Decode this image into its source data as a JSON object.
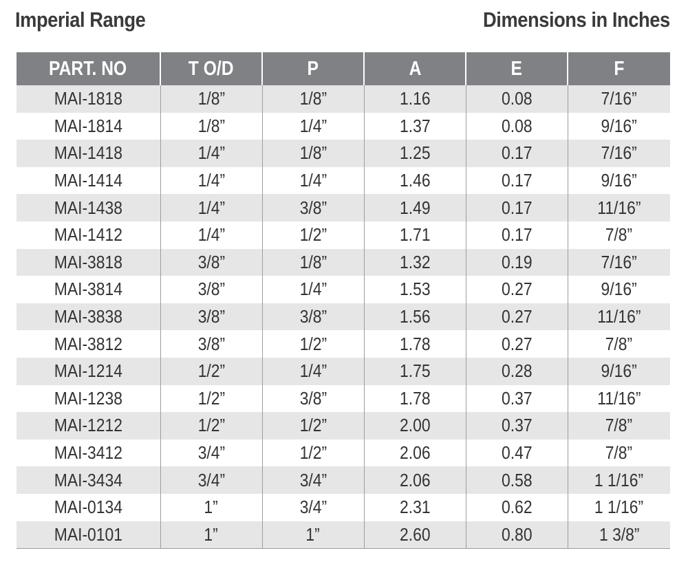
{
  "header": {
    "title": "Imperial Range",
    "units_note": "Dimensions in Inches"
  },
  "table": {
    "columns": [
      "PART. NO",
      "T O/D",
      "P",
      "A",
      "E",
      "F"
    ],
    "rows": [
      [
        "MAI-1818",
        "1/8”",
        "1/8”",
        "1.16",
        "0.08",
        "7/16”"
      ],
      [
        "MAI-1814",
        "1/8”",
        "1/4”",
        "1.37",
        "0.08",
        "9/16”"
      ],
      [
        "MAI-1418",
        "1/4”",
        "1/8”",
        "1.25",
        "0.17",
        "7/16”"
      ],
      [
        "MAI-1414",
        "1/4”",
        "1/4”",
        "1.46",
        "0.17",
        "9/16”"
      ],
      [
        "MAI-1438",
        "1/4”",
        "3/8”",
        "1.49",
        "0.17",
        "11/16”"
      ],
      [
        "MAI-1412",
        "1/4”",
        "1/2”",
        "1.71",
        "0.17",
        "7/8”"
      ],
      [
        "MAI-3818",
        "3/8”",
        "1/8”",
        "1.32",
        "0.19",
        "7/16”"
      ],
      [
        "MAI-3814",
        "3/8”",
        "1/4”",
        "1.53",
        "0.27",
        "9/16”"
      ],
      [
        "MAI-3838",
        "3/8”",
        "3/8”",
        "1.56",
        "0.27",
        "11/16”"
      ],
      [
        "MAI-3812",
        "3/8”",
        "1/2”",
        "1.78",
        "0.27",
        "7/8”"
      ],
      [
        "MAI-1214",
        "1/2”",
        "1/4”",
        "1.75",
        "0.28",
        "9/16”"
      ],
      [
        "MAI-1238",
        "1/2”",
        "3/8”",
        "1.78",
        "0.37",
        "11/16”"
      ],
      [
        "MAI-1212",
        "1/2”",
        "1/2”",
        "2.00",
        "0.37",
        "7/8”"
      ],
      [
        "MAI-3412",
        "3/4”",
        "1/2”",
        "2.06",
        "0.47",
        "7/8”"
      ],
      [
        "MAI-3434",
        "3/4”",
        "3/4”",
        "2.06",
        "0.58",
        "1 1/16”"
      ],
      [
        "MAI-0134",
        "1”",
        "3/4”",
        "2.31",
        "0.62",
        "1 1/16”"
      ],
      [
        "MAI-0101",
        "1”",
        "1”",
        "2.60",
        "0.80",
        "1 3/8”"
      ]
    ]
  },
  "colors": {
    "header_bg": "#808184",
    "stripe_bg": "#e6e6e7",
    "title_text": "#3a3a3a"
  }
}
